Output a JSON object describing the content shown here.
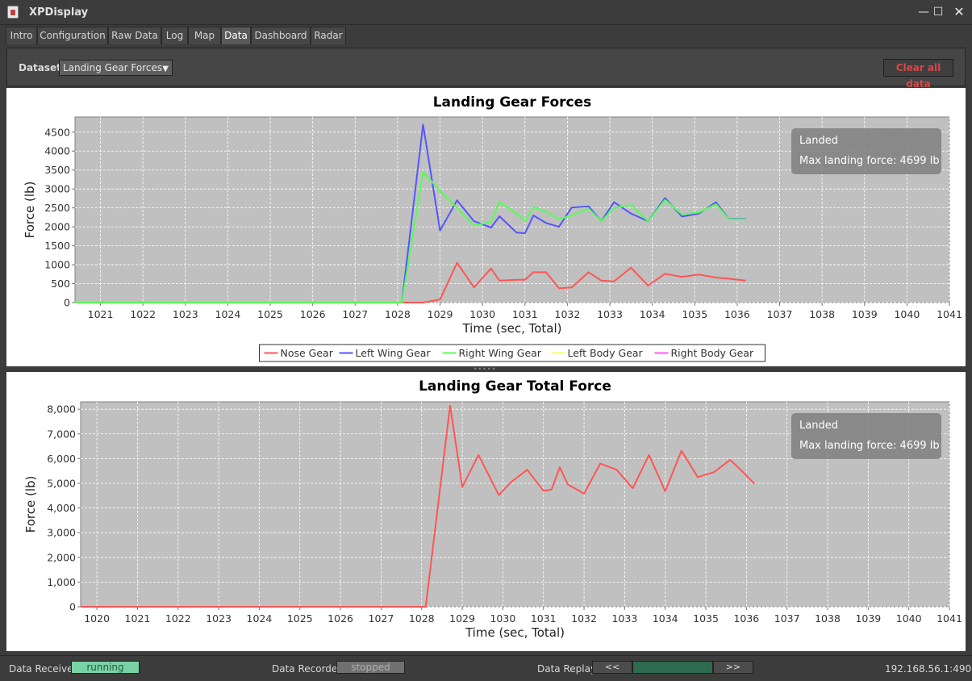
{
  "window": {
    "title": "XPDisplay",
    "controls": {
      "minimize": "—",
      "maximize": "☐",
      "close": "✕"
    }
  },
  "tabs": [
    {
      "label": "Intro"
    },
    {
      "label": "Configuration"
    },
    {
      "label": "Raw Data"
    },
    {
      "label": "Log"
    },
    {
      "label": "Map"
    },
    {
      "label": "Data",
      "active": true
    },
    {
      "label": "Dashboard"
    },
    {
      "label": "Radar"
    }
  ],
  "toolbar": {
    "dataset_label": "Dataset:",
    "dataset_value": "Landing Gear Forces",
    "clear_label": "Clear all data"
  },
  "annotation": {
    "line1": "Landed",
    "line2": "Max landing force: 4699 lb"
  },
  "colors": {
    "nose": "#ff5555",
    "left_wing": "#5555ff",
    "right_wing": "#55ff55",
    "left_body": "#ffff55",
    "right_body": "#ff55ff",
    "total": "#ff5555",
    "plot_bg": "#c0c0c0"
  },
  "chart_data": [
    {
      "type": "line",
      "title": "Landing Gear Forces",
      "xlabel": "Time (sec, Total)",
      "ylabel": "Force (lb)",
      "xlim": [
        1020.4,
        1041.0
      ],
      "ylim": [
        0,
        4900
      ],
      "xticks": [
        1021,
        1022,
        1023,
        1024,
        1025,
        1026,
        1027,
        1028,
        1029,
        1030,
        1031,
        1032,
        1033,
        1034,
        1035,
        1036,
        1037,
        1038,
        1039,
        1040,
        1041
      ],
      "yticks": [
        0,
        500,
        1000,
        1500,
        2000,
        2500,
        3000,
        3500,
        4000,
        4500
      ],
      "ytick_labels": [
        "0",
        "500",
        "1000",
        "1500",
        "2000",
        "2500",
        "3000",
        "3500",
        "4000",
        "4500"
      ],
      "grid": true,
      "legend": "bottom",
      "series": [
        {
          "name": "Nose Gear",
          "color_key": "nose",
          "x": [
            1020.4,
            1028.1,
            1028.6,
            1029.0,
            1029.4,
            1029.8,
            1030.2,
            1030.4,
            1030.8,
            1031.0,
            1031.2,
            1031.5,
            1031.8,
            1032.1,
            1032.5,
            1032.8,
            1033.1,
            1033.5,
            1033.9,
            1034.3,
            1034.7,
            1035.1,
            1035.5,
            1035.8,
            1036.2
          ],
          "y": [
            0,
            0,
            0,
            80,
            1050,
            400,
            900,
            580,
            600,
            600,
            800,
            800,
            380,
            400,
            800,
            580,
            560,
            920,
            450,
            760,
            680,
            740,
            660,
            630,
            580
          ]
        },
        {
          "name": "Left Wing Gear",
          "color_key": "left_wing",
          "x": [
            1020.4,
            1028.1,
            1028.6,
            1029.0,
            1029.4,
            1029.8,
            1030.2,
            1030.4,
            1030.8,
            1031.0,
            1031.2,
            1031.5,
            1031.8,
            1032.1,
            1032.5,
            1032.8,
            1033.1,
            1033.5,
            1033.9,
            1034.3,
            1034.7,
            1035.1,
            1035.5,
            1035.8,
            1036.2
          ],
          "y": [
            0,
            0,
            4699,
            1900,
            2700,
            2150,
            1980,
            2280,
            1850,
            1830,
            2300,
            2100,
            2000,
            2510,
            2540,
            2150,
            2650,
            2350,
            2150,
            2760,
            2270,
            2350,
            2650,
            2210,
            2210
          ]
        },
        {
          "name": "Right Wing Gear",
          "color_key": "right_wing",
          "x": [
            1020.4,
            1028.1,
            1028.6,
            1029.0,
            1029.4,
            1029.8,
            1030.2,
            1030.4,
            1030.8,
            1031.0,
            1031.2,
            1031.5,
            1031.8,
            1032.1,
            1032.5,
            1032.8,
            1033.1,
            1033.5,
            1033.9,
            1034.3,
            1034.7,
            1035.1,
            1035.5,
            1035.8,
            1036.2
          ],
          "y": [
            0,
            0,
            3450,
            2950,
            2500,
            2030,
            2130,
            2660,
            2350,
            2150,
            2520,
            2400,
            2200,
            2300,
            2480,
            2150,
            2500,
            2580,
            2150,
            2710,
            2330,
            2380,
            2600,
            2200,
            2200
          ]
        },
        {
          "name": "Left Body Gear",
          "color_key": "left_body",
          "x": [],
          "y": []
        },
        {
          "name": "Right Body Gear",
          "color_key": "right_body",
          "x": [],
          "y": []
        }
      ]
    },
    {
      "type": "line",
      "title": "Landing Gear Total Force",
      "xlabel": "Time (sec, Total)",
      "ylabel": "Force (lb)",
      "xlim": [
        1019.6,
        1041.0
      ],
      "ylim": [
        0,
        8300
      ],
      "xticks": [
        1020,
        1021,
        1022,
        1023,
        1024,
        1025,
        1026,
        1027,
        1028,
        1029,
        1030,
        1031,
        1032,
        1033,
        1034,
        1035,
        1036,
        1037,
        1038,
        1039,
        1040,
        1041
      ],
      "yticks": [
        0,
        1000,
        2000,
        3000,
        4000,
        5000,
        6000,
        7000,
        8000
      ],
      "ytick_labels": [
        "0",
        "1,000",
        "2,000",
        "3,000",
        "4,000",
        "5,000",
        "6,000",
        "7,000",
        "8,000"
      ],
      "grid": true,
      "series": [
        {
          "color_key": "total",
          "x": [
            1019.6,
            1028.1,
            1028.7,
            1029.0,
            1029.4,
            1029.9,
            1030.2,
            1030.6,
            1031.0,
            1031.2,
            1031.4,
            1031.6,
            1032.0,
            1032.4,
            1032.8,
            1033.2,
            1033.6,
            1034.0,
            1034.4,
            1034.8,
            1035.2,
            1035.6,
            1035.9,
            1036.2
          ],
          "y": [
            0,
            0,
            8150,
            4850,
            6150,
            4520,
            5050,
            5550,
            4700,
            4750,
            5650,
            4950,
            4580,
            5800,
            5550,
            4800,
            6150,
            4680,
            6320,
            5250,
            5450,
            5950,
            5480,
            4980
          ]
        }
      ]
    }
  ]
}
